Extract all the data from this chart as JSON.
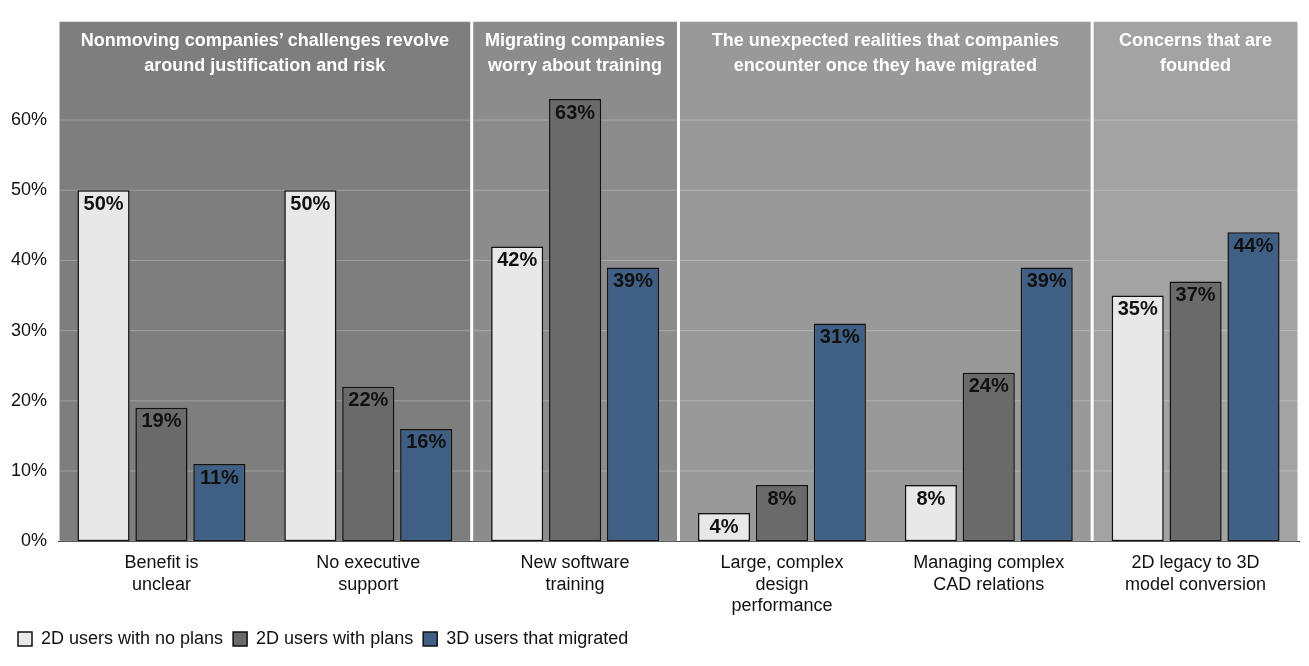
{
  "chart_data": {
    "type": "bar",
    "categories": [
      "Benefit is unclear",
      "No executive support",
      "New software training",
      "Large, complex design performance",
      "Managing complex CAD relations",
      "2D legacy to 3D model conversion"
    ],
    "series": [
      {
        "name": "2D users with no plans",
        "color": "#e8e8e8",
        "values": [
          50,
          50,
          42,
          4,
          8,
          35
        ],
        "value_labels": [
          "50%",
          "50%",
          "42%",
          "4%",
          "8%",
          "35%"
        ]
      },
      {
        "name": "2D users with plans",
        "color": "#6a6a6a",
        "values": [
          19,
          22,
          63,
          8,
          24,
          37
        ],
        "value_labels": [
          "19%",
          "22%",
          "63%",
          "8%",
          "24%",
          "37%"
        ]
      },
      {
        "name": "3D users that migrated",
        "color": "#3f5f84",
        "values": [
          11,
          16,
          39,
          31,
          39,
          44
        ],
        "value_labels": [
          "11%",
          "16%",
          "39%",
          "31%",
          "39%",
          "44%"
        ]
      }
    ],
    "ylim": [
      0,
      74
    ],
    "yticks": [
      {
        "value": 0,
        "label": "0%"
      },
      {
        "value": 10,
        "label": "10%"
      },
      {
        "value": 20,
        "label": "20%"
      },
      {
        "value": 30,
        "label": "30%"
      },
      {
        "value": 40,
        "label": "40%"
      },
      {
        "value": 50,
        "label": "50%"
      },
      {
        "value": 60,
        "label": "60%"
      }
    ],
    "bands": [
      {
        "axis": "x",
        "from": "Benefit is unclear",
        "to": "No executive support",
        "label": "Nonmoving companies’ challenges revolve around justification and risk",
        "color": "#7e7e7e"
      },
      {
        "axis": "x",
        "from": "New software training",
        "to": "New software training",
        "label": "Migrating companies worry about training",
        "color": "#8c8c8c"
      },
      {
        "axis": "x",
        "from": "Large, complex design performance",
        "to": "Managing complex CAD relations",
        "label": "The unexpected realities that companies encounter once they have migrated",
        "color": "#999999"
      },
      {
        "axis": "x",
        "from": "2D legacy to 3D model conversion",
        "to": "2D legacy to 3D model conversion",
        "label": "Concerns that are founded",
        "color": "#a3a3a3"
      }
    ],
    "grid": "y",
    "legend": "bottom left"
  }
}
